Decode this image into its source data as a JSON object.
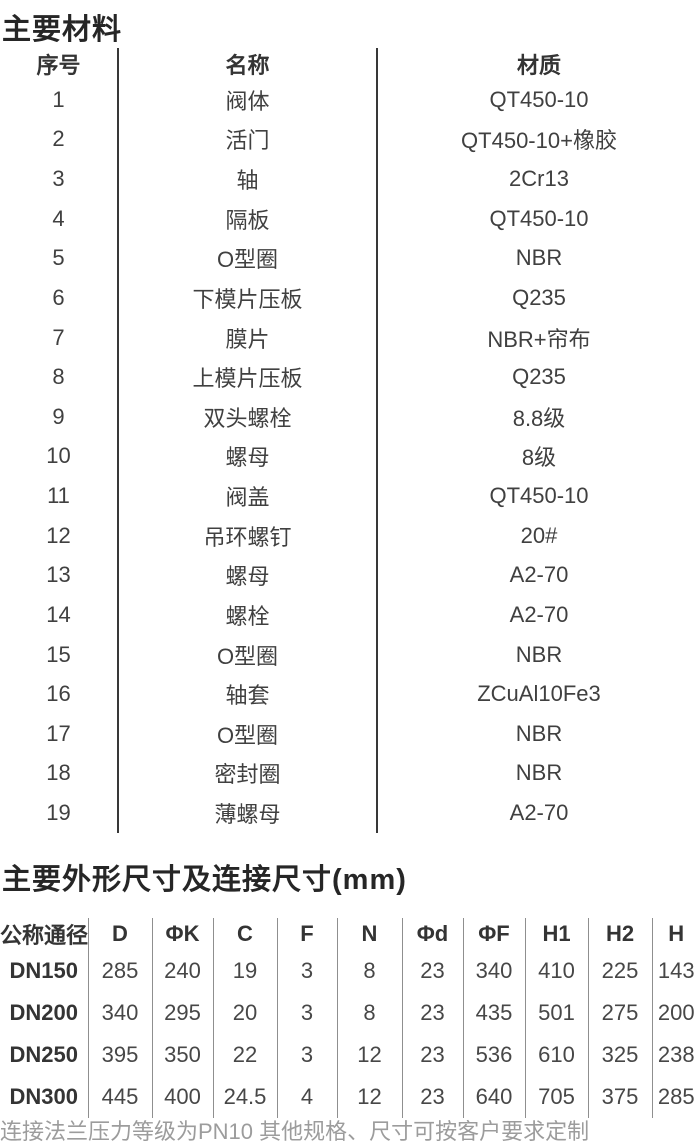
{
  "palette": {
    "background": "#ffffff",
    "title_color": "#262626",
    "body_text_color": "#404040",
    "strong_rule_color": "#383838",
    "light_rule_color": "#8f8f8f",
    "note_color": "#9c9c9c"
  },
  "materials": {
    "title": "主要材料",
    "headers": [
      "序号",
      "名称",
      "材质"
    ],
    "rows": [
      [
        "1",
        "阀体",
        "QT450-10"
      ],
      [
        "2",
        "活门",
        "QT450-10+橡胶"
      ],
      [
        "3",
        "轴",
        "2Cr13"
      ],
      [
        "4",
        "隔板",
        "QT450-10"
      ],
      [
        "5",
        "O型圈",
        "NBR"
      ],
      [
        "6",
        "下模片压板",
        "Q235"
      ],
      [
        "7",
        "膜片",
        "NBR+帘布"
      ],
      [
        "8",
        "上模片压板",
        "Q235"
      ],
      [
        "9",
        "双头螺栓",
        "8.8级"
      ],
      [
        "10",
        "螺母",
        "8级"
      ],
      [
        "11",
        "阀盖",
        "QT450-10"
      ],
      [
        "12",
        "吊环螺钉",
        "20#"
      ],
      [
        "13",
        "螺母",
        "A2-70"
      ],
      [
        "14",
        "螺栓",
        "A2-70"
      ],
      [
        "15",
        "O型圈",
        "NBR"
      ],
      [
        "16",
        "轴套",
        "ZCuAl10Fe3"
      ],
      [
        "17",
        "O型圈",
        "NBR"
      ],
      [
        "18",
        "密封圈",
        "NBR"
      ],
      [
        "19",
        "薄螺母",
        "A2-70"
      ]
    ]
  },
  "dimensions": {
    "title": "主要外形尺寸及连接尺寸(mm)",
    "headers": [
      "公称通径",
      "D",
      "ΦK",
      "C",
      "F",
      "N",
      "Φd",
      "ΦF",
      "H1",
      "H2",
      "H"
    ],
    "rows": [
      [
        "DN150",
        "285",
        "240",
        "19",
        "3",
        "8",
        "23",
        "340",
        "410",
        "225",
        "143"
      ],
      [
        "DN200",
        "340",
        "295",
        "20",
        "3",
        "8",
        "23",
        "435",
        "501",
        "275",
        "200"
      ],
      [
        "DN250",
        "395",
        "350",
        "22",
        "3",
        "12",
        "23",
        "536",
        "610",
        "325",
        "238"
      ],
      [
        "DN300",
        "445",
        "400",
        "24.5",
        "4",
        "12",
        "23",
        "640",
        "705",
        "375",
        "285"
      ]
    ],
    "note": "连接法兰压力等级为PN10 其他规格、尺寸可按客户要求定制"
  }
}
